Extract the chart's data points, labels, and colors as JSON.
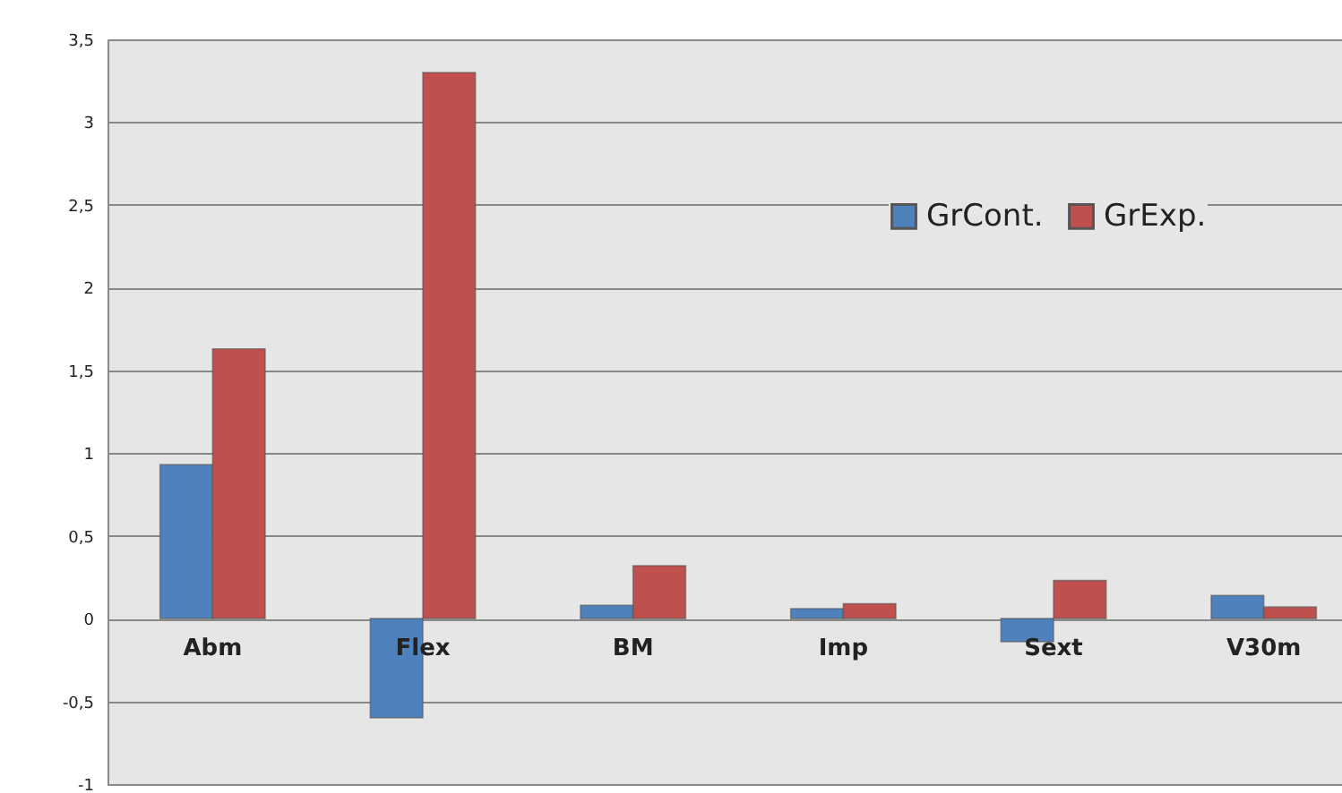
{
  "chart_data": {
    "type": "bar",
    "categories": [
      "Abm",
      "Flex",
      "BM",
      "Imp",
      "Sext",
      "V30m"
    ],
    "series": [
      {
        "name": "GrCont.",
        "color": "#4f81bd",
        "values": [
          0.93,
          -0.6,
          0.08,
          0.06,
          -0.14,
          0.14
        ]
      },
      {
        "name": "GrExp.",
        "color": "#c0504d",
        "values": [
          1.63,
          3.3,
          0.32,
          0.09,
          0.23,
          0.07
        ]
      }
    ],
    "ylim": [
      -1,
      3.5
    ],
    "yticks": [
      {
        "value": -1,
        "label": "-1"
      },
      {
        "value": -0.5,
        "label": "-0,5"
      },
      {
        "value": 0,
        "label": "0"
      },
      {
        "value": 0.5,
        "label": "0,5"
      },
      {
        "value": 1,
        "label": "1"
      },
      {
        "value": 1.5,
        "label": "1,5"
      },
      {
        "value": 2,
        "label": "2"
      },
      {
        "value": 2.5,
        "label": "2,5"
      },
      {
        "value": 3,
        "label": "3"
      },
      {
        "value": 3.5,
        "label": "3,5"
      }
    ],
    "grid": true,
    "legend": "top right"
  }
}
